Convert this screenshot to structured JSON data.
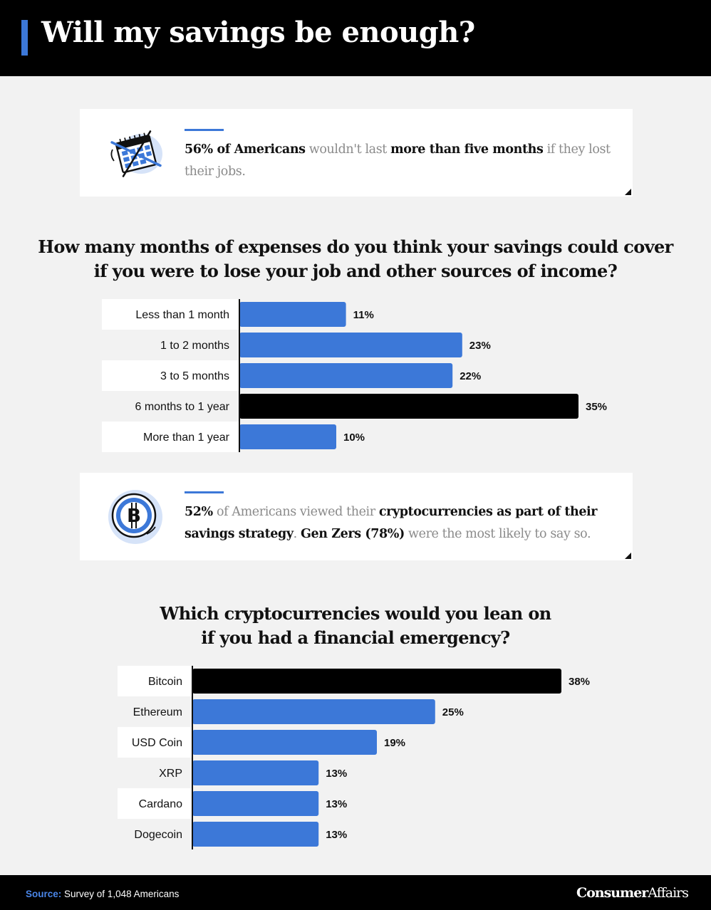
{
  "title": "Will my savings be enough?",
  "colors": {
    "accent": "#3c78d8",
    "highlight": "#000000",
    "header_bg": "#000000"
  },
  "card1": {
    "icon": "calendar-crossed-icon",
    "parts": [
      {
        "text": "56% of Americans",
        "bold": true
      },
      {
        "text": " wouldn't last ",
        "bold": false
      },
      {
        "text": "more than five months",
        "bold": true
      },
      {
        "text": " if they lost their jobs.",
        "bold": false
      }
    ]
  },
  "question1": {
    "line1": "How many months of expenses do you think your savings could cover",
    "line2": "if you were to lose your job and other sources of income?"
  },
  "card2": {
    "icon": "bitcoin-coin-icon",
    "parts": [
      {
        "text": "52%",
        "bold": true
      },
      {
        "text": " of Americans viewed their ",
        "bold": false
      },
      {
        "text": "cryptocurrencies as part of their savings strategy",
        "bold": true
      },
      {
        "text": ". ",
        "bold": false
      },
      {
        "text": "Gen Zers (78%)",
        "bold": true
      },
      {
        "text": " were the most likely to say so.",
        "bold": false
      }
    ]
  },
  "question2": {
    "line1": "Which cryptocurrencies would you lean on",
    "line2": "if you had a financial emergency?"
  },
  "chart_data": [
    {
      "type": "bar",
      "orientation": "horizontal",
      "categories": [
        "Less than 1 month",
        "1 to 2 months",
        "3 to 5 months",
        "6 months to 1 year",
        "More than 1 year"
      ],
      "values": [
        11,
        23,
        22,
        35,
        10
      ],
      "labels": [
        "11%",
        "23%",
        "22%",
        "35%",
        "10%"
      ],
      "highlight_index": 3,
      "unit": "%",
      "xlim": [
        0,
        35
      ]
    },
    {
      "type": "bar",
      "orientation": "horizontal",
      "categories": [
        "Bitcoin",
        "Ethereum",
        "USD Coin",
        "XRP",
        "Cardano",
        "Dogecoin"
      ],
      "values": [
        38,
        25,
        19,
        13,
        13,
        13
      ],
      "labels": [
        "38%",
        "25%",
        "19%",
        "13%",
        "13%",
        "13%"
      ],
      "highlight_index": 0,
      "unit": "%",
      "xlim": [
        0,
        38
      ]
    }
  ],
  "footer": {
    "source_label": "Source:",
    "source_text": "Survey of 1,048 Americans",
    "logo_bold": "Consumer",
    "logo_regular": "Affairs"
  }
}
